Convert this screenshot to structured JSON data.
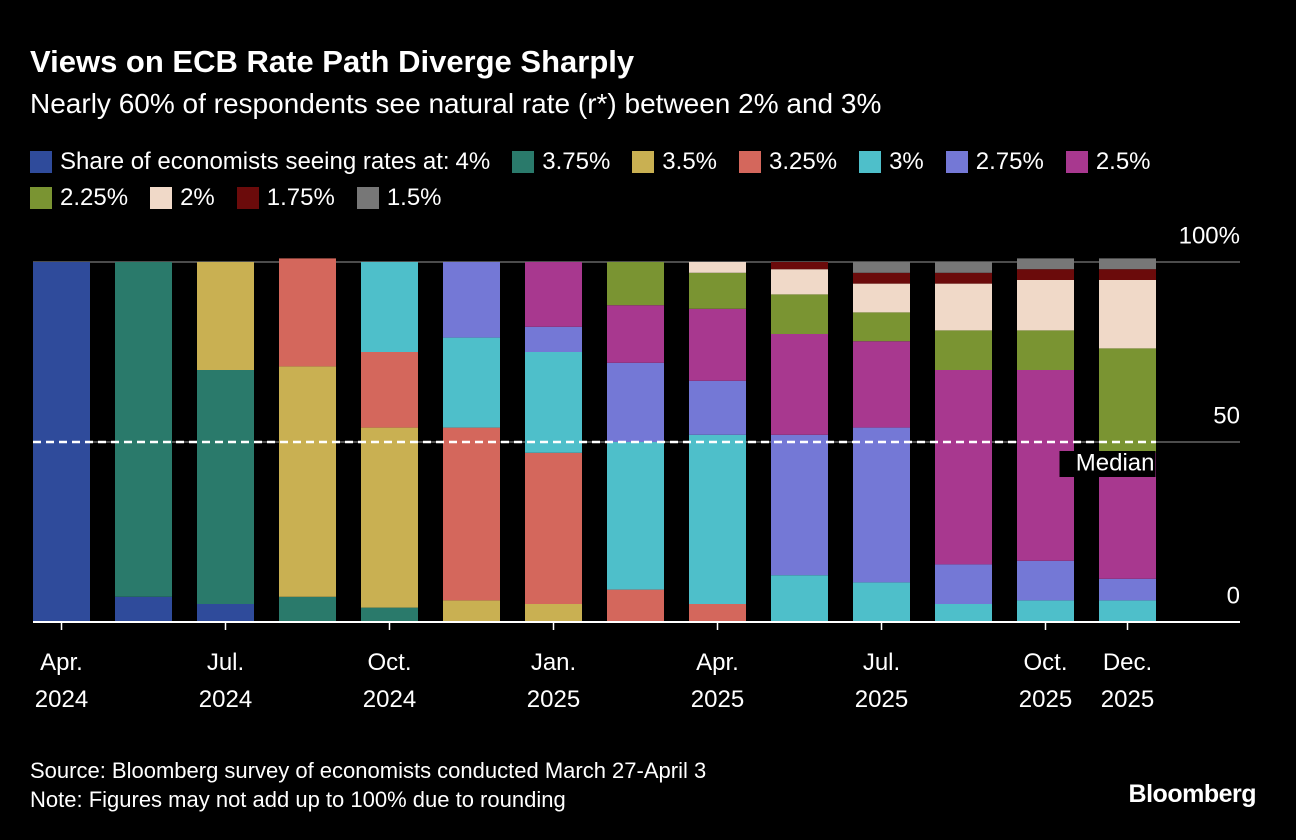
{
  "chart_data": {
    "type": "stacked-bar",
    "title": "Views on ECB Rate Path Diverge Sharply",
    "subtitle": "Nearly 60% of respondents see natural rate (r*) between 2% and 3%",
    "legend_title": "Share of economists seeing rates at:",
    "categories": [
      "Apr. 2024",
      null,
      "Jul. 2024",
      null,
      "Oct. 2024",
      null,
      "Jan. 2025",
      null,
      "Apr. 2025",
      null,
      "Jul. 2025",
      null,
      "Oct. 2025",
      "Dec. 2025"
    ],
    "series": [
      {
        "name": "4%",
        "color": "#2f4b9b",
        "values": [
          100,
          7,
          5,
          0,
          0,
          0,
          0,
          0,
          0,
          0,
          0,
          0,
          0,
          0
        ]
      },
      {
        "name": "3.75%",
        "color": "#2a7a6b",
        "values": [
          0,
          93,
          65,
          7,
          4,
          0,
          0,
          0,
          0,
          0,
          0,
          0,
          0,
          0
        ]
      },
      {
        "name": "3.5%",
        "color": "#c9b052",
        "values": [
          0,
          0,
          30,
          64,
          50,
          6,
          5,
          0,
          0,
          0,
          0,
          0,
          0,
          0
        ]
      },
      {
        "name": "3.25%",
        "color": "#d4675c",
        "values": [
          0,
          0,
          0,
          30,
          21,
          48,
          42,
          9,
          5,
          0,
          0,
          0,
          0,
          0
        ]
      },
      {
        "name": "3%",
        "color": "#4ebfca",
        "values": [
          0,
          0,
          0,
          0,
          25,
          25,
          28,
          41,
          47,
          13,
          11,
          5,
          6,
          6
        ]
      },
      {
        "name": "2.75%",
        "color": "#7478d6",
        "values": [
          0,
          0,
          0,
          0,
          0,
          21,
          7,
          22,
          15,
          39,
          43,
          11,
          11,
          6
        ]
      },
      {
        "name": "2.5%",
        "color": "#a8388f",
        "values": [
          0,
          0,
          0,
          0,
          0,
          0,
          18,
          16,
          20,
          28,
          24,
          54,
          53,
          35
        ]
      },
      {
        "name": "2.25%",
        "color": "#7a9432",
        "values": [
          0,
          0,
          0,
          0,
          0,
          0,
          0,
          12,
          10,
          11,
          8,
          11,
          11,
          29
        ]
      },
      {
        "name": "2%",
        "color": "#f0d9c8",
        "values": [
          0,
          0,
          0,
          0,
          0,
          0,
          0,
          0,
          3,
          7,
          8,
          13,
          14,
          19
        ]
      },
      {
        "name": "1.75%",
        "color": "#6b0b0b",
        "values": [
          0,
          0,
          0,
          0,
          0,
          0,
          0,
          0,
          0,
          2,
          3,
          3,
          3,
          3
        ]
      },
      {
        "name": "1.5%",
        "color": "#777777",
        "values": [
          0,
          0,
          0,
          0,
          0,
          0,
          0,
          0,
          0,
          0,
          3,
          3,
          3,
          3
        ]
      }
    ],
    "ylim": [
      0,
      100
    ],
    "yticks": [
      0,
      50,
      {
        "value": 100,
        "label": "100%"
      }
    ],
    "grid": true,
    "median": 50,
    "annotation": "Median",
    "source": "Source: Bloomberg survey of economists conducted March 27-April 3",
    "note": "Note: Figures may not add up to 100% due to rounding",
    "brand": "Bloomberg"
  }
}
